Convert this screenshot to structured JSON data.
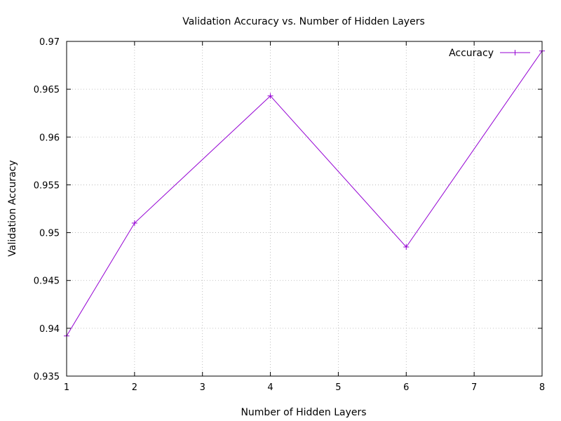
{
  "chart_data": {
    "type": "line",
    "title": "Validation Accuracy vs. Number of Hidden Layers",
    "xlabel": "Number of Hidden Layers",
    "ylabel": "Validation Accuracy",
    "xlim": [
      1,
      8
    ],
    "ylim": [
      0.935,
      0.97
    ],
    "xticks": [
      1,
      2,
      3,
      4,
      5,
      6,
      7,
      8
    ],
    "xtick_labels": [
      "1",
      "2",
      "3",
      "4",
      "5",
      "6",
      "7",
      "8"
    ],
    "yticks": [
      0.935,
      0.94,
      0.945,
      0.95,
      0.955,
      0.96,
      0.965,
      0.97
    ],
    "ytick_labels": [
      "0.935",
      "0.94",
      "0.945",
      "0.95",
      "0.955",
      "0.96",
      "0.965",
      "0.97"
    ],
    "grid": true,
    "legend_position": "top-right",
    "series": [
      {
        "name": "Accuracy",
        "color": "#9400d3",
        "marker": "plus",
        "x": [
          1,
          2,
          4,
          6,
          8
        ],
        "y": [
          0.9392,
          0.951,
          0.9643,
          0.9485,
          0.969
        ]
      }
    ]
  }
}
